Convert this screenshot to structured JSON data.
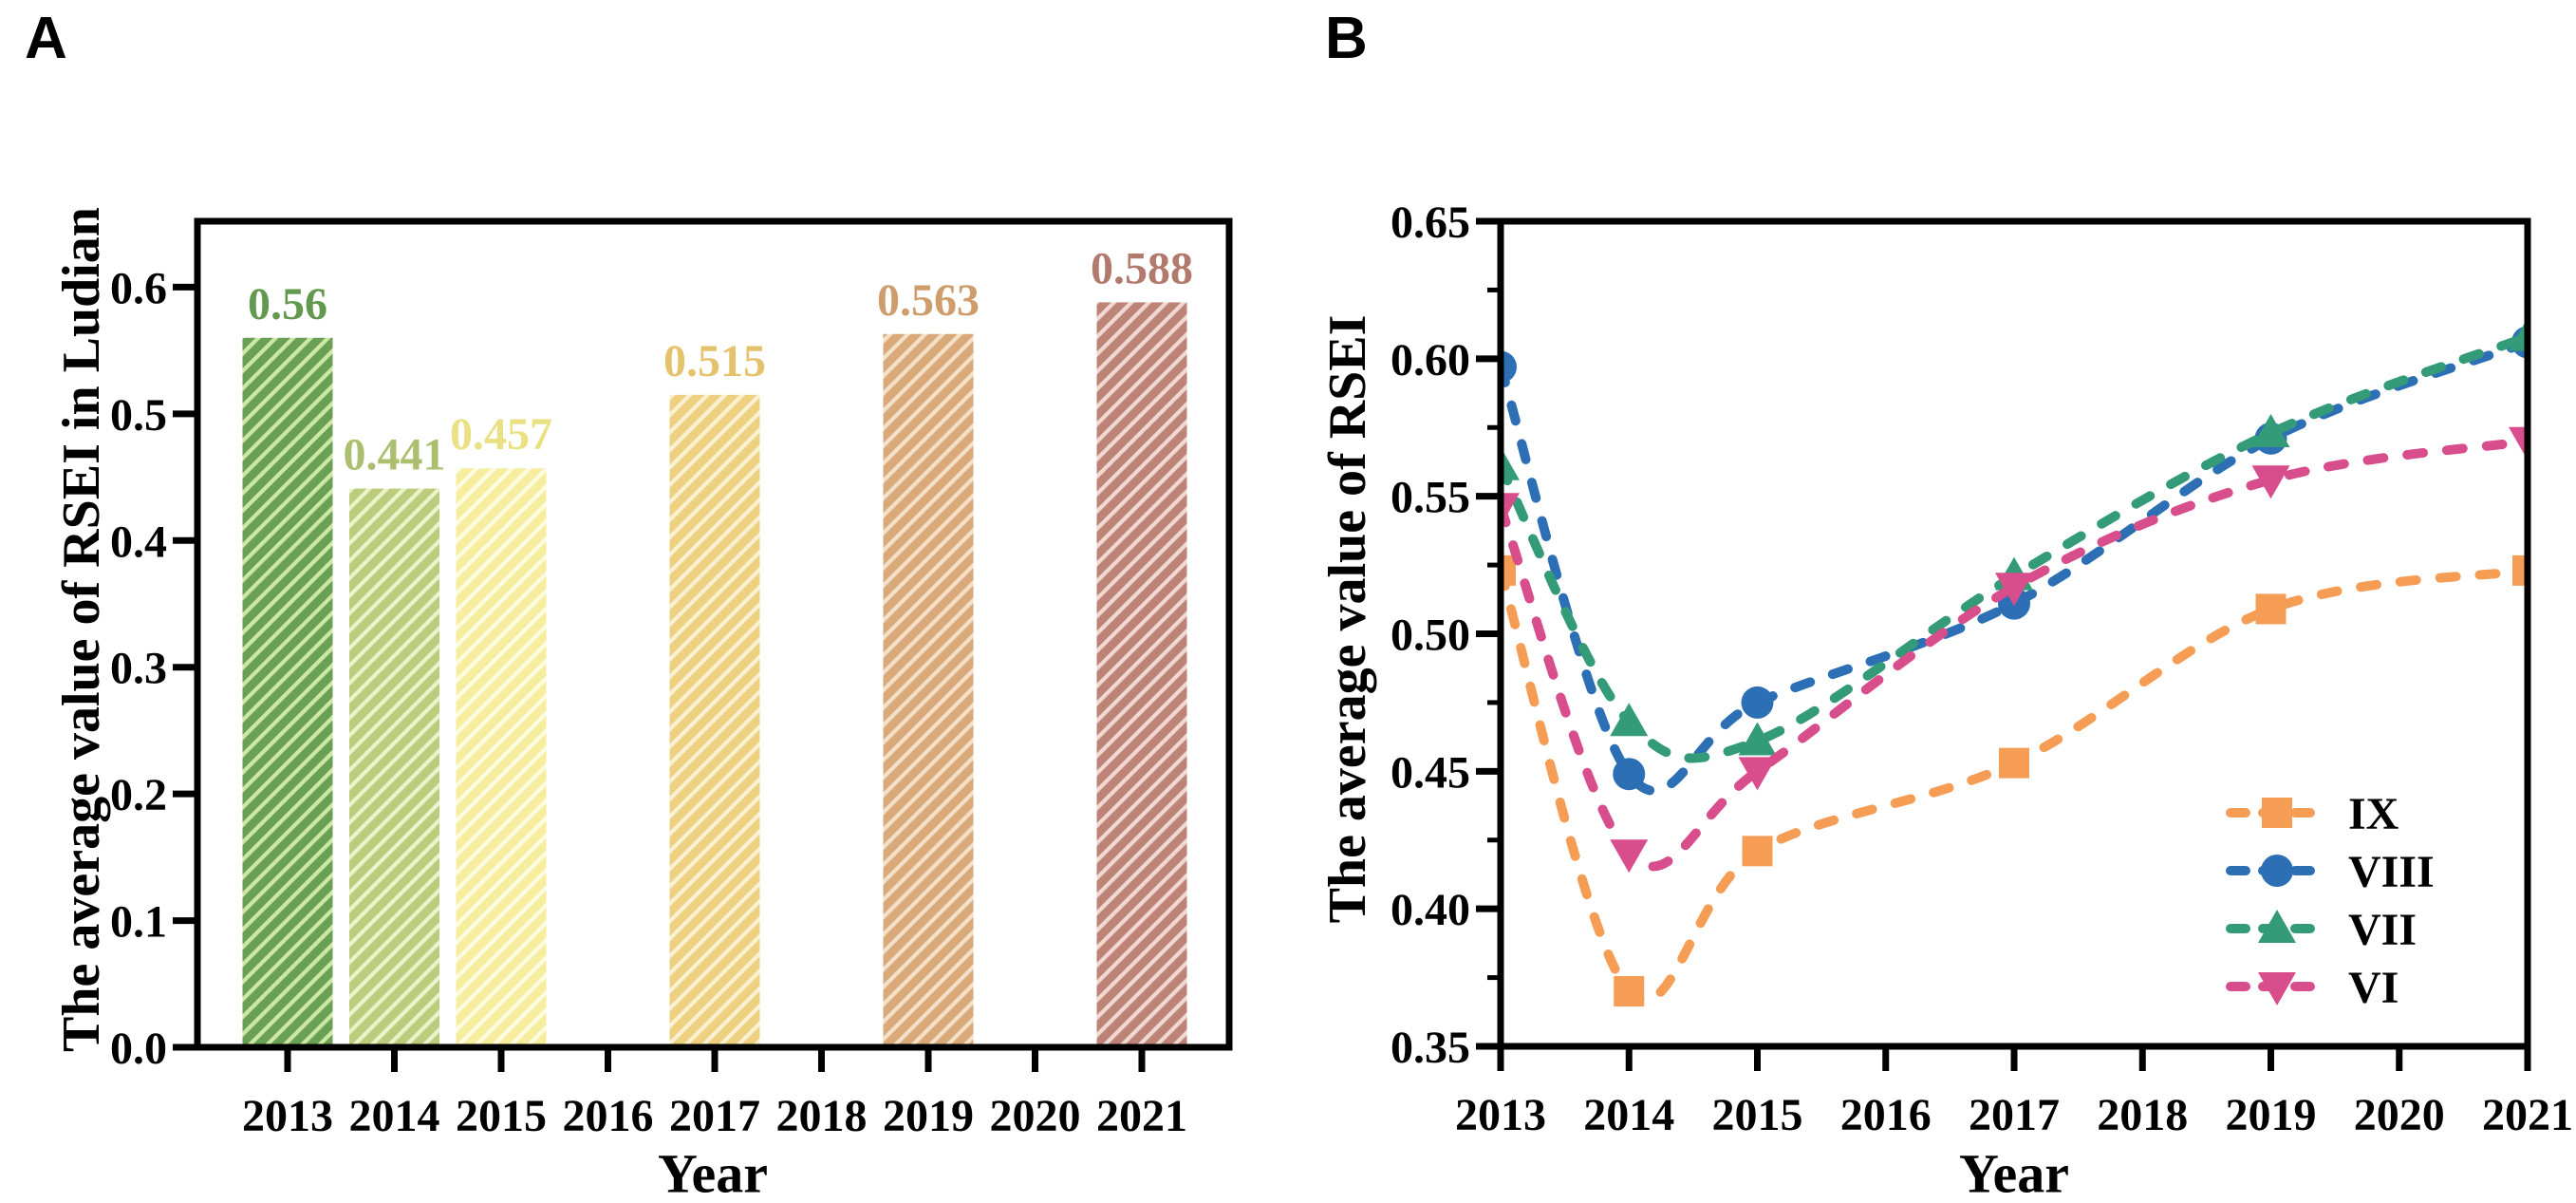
{
  "chart_data": [
    {
      "type": "bar",
      "panel_label": "A",
      "xlabel": "Year",
      "ylabel": "The average value of RSEI in Ludian",
      "categories": [
        "2013",
        "2014",
        "2015",
        "2016",
        "2017",
        "2018",
        "2019",
        "2020",
        "2021"
      ],
      "ylim": [
        0,
        0.652
      ],
      "ytick_values": [
        0.0,
        0.1,
        0.2,
        0.3,
        0.4,
        0.5,
        0.6
      ],
      "ytick_labels": [
        "0.0",
        "0.1",
        "0.2",
        "0.3",
        "0.4",
        "0.5",
        "0.6"
      ],
      "grid": false,
      "hatch": "diagonal-stripes",
      "bars": [
        {
          "year": "2013",
          "value": 0.56,
          "label": "0.56",
          "fill": "#6AA054",
          "stripe": "#CDE8A6",
          "label_color": "#63994E"
        },
        {
          "year": "2014",
          "value": 0.441,
          "label": "0.441",
          "fill": "#BBCD7D",
          "stripe": "#ECF2CA",
          "label_color": "#ACBF6E"
        },
        {
          "year": "2015",
          "value": 0.457,
          "label": "0.457",
          "fill": "#F6EE9E",
          "stripe": "#FDFBE2",
          "label_color": "#EAE084"
        },
        {
          "year": "2017",
          "value": 0.515,
          "label": "0.515",
          "fill": "#EDD180",
          "stripe": "#FAF0D2",
          "label_color": "#E4C36C"
        },
        {
          "year": "2019",
          "value": 0.563,
          "label": "0.563",
          "fill": "#DAA97A",
          "stripe": "#F3E0C9",
          "label_color": "#CE9D6B"
        },
        {
          "year": "2021",
          "value": 0.588,
          "label": "0.588",
          "fill": "#BD8376",
          "stripe": "#EFD9D1",
          "label_color": "#B27A6D"
        }
      ]
    },
    {
      "type": "line",
      "panel_label": "B",
      "xlabel": "Year",
      "ylabel": "The average value of RSEI",
      "x": [
        "2013",
        "2014",
        "2015",
        "2017",
        "2019",
        "2021"
      ],
      "xtick_labels": [
        "2013",
        "2014",
        "2015",
        "2016",
        "2017",
        "2018",
        "2019",
        "2020",
        "2021"
      ],
      "ylim": [
        0.35,
        0.65
      ],
      "ytick_values": [
        0.65,
        0.6,
        0.55,
        0.5,
        0.45,
        0.4,
        0.35
      ],
      "ytick_labels": [
        "0.65",
        "0.60",
        "0.55",
        "0.50",
        "0.45",
        "0.40",
        "0.35"
      ],
      "minor_ytick_values": [
        0.375,
        0.425,
        0.475,
        0.525,
        0.575,
        0.625
      ],
      "line_style": "dashed",
      "legend_position": "lower right",
      "legend_order": [
        "IX",
        "VIII",
        "VII",
        "VI"
      ],
      "series": [
        {
          "name": "IX",
          "color": "#F59D54",
          "marker": "square",
          "values": [
            0.523,
            0.37,
            0.421,
            0.453,
            0.509,
            0.523
          ]
        },
        {
          "name": "VIII",
          "color": "#2C6FB5",
          "marker": "circle",
          "values": [
            0.597,
            0.449,
            0.475,
            0.511,
            0.571,
            0.606
          ]
        },
        {
          "name": "VII",
          "color": "#339B78",
          "marker": "triangle-up",
          "values": [
            0.561,
            0.468,
            0.461,
            0.521,
            0.573,
            0.608
          ]
        },
        {
          "name": "VI",
          "color": "#D84E8C",
          "marker": "triangle-down",
          "values": [
            0.546,
            0.42,
            0.45,
            0.517,
            0.556,
            0.57
          ]
        }
      ]
    }
  ]
}
